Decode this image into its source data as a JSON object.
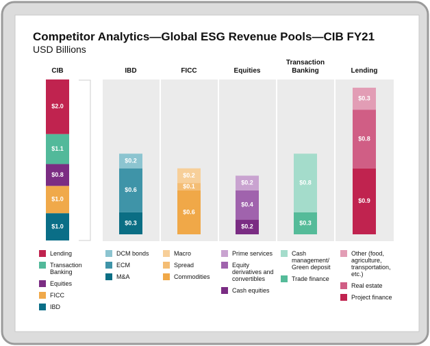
{
  "chart_data": {
    "type": "bar",
    "stacked": true,
    "title": "Competitor Analytics—Global ESG Revenue Pools—CIB FY21",
    "subtitle": "USD Billions",
    "panels": [
      {
        "title": "CIB",
        "series": [
          {
            "name": "Lending",
            "color": "#c0234f",
            "values": [
              2.0
            ],
            "value_labels": [
              "$2.0"
            ]
          },
          {
            "name": "Transaction Banking",
            "color": "#52b99a",
            "values": [
              1.1
            ],
            "value_labels": [
              "$1.1"
            ]
          },
          {
            "name": "Equities",
            "color": "#7b2d83",
            "values": [
              0.8
            ],
            "value_labels": [
              "$0.8"
            ]
          },
          {
            "name": "FICC",
            "color": "#f0a94a",
            "values": [
              1.0
            ],
            "value_labels": [
              "$1.0"
            ]
          },
          {
            "name": "IBD",
            "color": "#0a6e87",
            "values": [
              1.0
            ],
            "value_labels": [
              "$1.0"
            ]
          }
        ]
      },
      {
        "title": "IBD",
        "series": [
          {
            "name": "DCM bonds",
            "color": "#8cc4d0",
            "values": [
              0.2
            ],
            "value_labels": [
              "$0.2"
            ]
          },
          {
            "name": "ECM",
            "color": "#3f94a8",
            "values": [
              0.6
            ],
            "value_labels": [
              "$0.6"
            ]
          },
          {
            "name": "M&A",
            "color": "#0b6e84",
            "values": [
              0.3
            ],
            "value_labels": [
              "$0.3"
            ]
          }
        ]
      },
      {
        "title": "FICC",
        "series": [
          {
            "name": "Macro",
            "color": "#f7cf99",
            "values": [
              0.2
            ],
            "value_labels": [
              "$0.2"
            ]
          },
          {
            "name": "Spread",
            "color": "#f4bd74",
            "values": [
              0.1
            ],
            "value_labels": [
              "$0.1"
            ]
          },
          {
            "name": "Commodities",
            "color": "#f0a848",
            "values": [
              0.6
            ],
            "value_labels": [
              "$0.6"
            ]
          }
        ]
      },
      {
        "title": "Equities",
        "series": [
          {
            "name": "Prime services",
            "color": "#c9a3d0",
            "values": [
              0.2
            ],
            "value_labels": [
              "$0.2"
            ]
          },
          {
            "name": "Equity derivatives and convertibles",
            "color": "#a063ad",
            "values": [
              0.4
            ],
            "value_labels": [
              "$0.4"
            ]
          },
          {
            "name": "Cash equities",
            "color": "#7a2c83",
            "values": [
              0.2
            ],
            "value_labels": [
              "$0.2"
            ]
          }
        ]
      },
      {
        "title": "Transaction Banking",
        "series": [
          {
            "name": "Cash management/ Green deposit",
            "color": "#a4dccb",
            "values": [
              0.8
            ],
            "value_labels": [
              "$0.8"
            ]
          },
          {
            "name": "Trade finance",
            "color": "#55bb99",
            "values": [
              0.3
            ],
            "value_labels": [
              "$0.3"
            ]
          }
        ]
      },
      {
        "title": "Lending",
        "series": [
          {
            "name": "Other (food, agriculture, transportation, etc.)",
            "color": "#e29db5",
            "values": [
              0.3
            ],
            "value_labels": [
              "$0.3"
            ]
          },
          {
            "name": "Real estate",
            "color": "#d05e85",
            "values": [
              0.8
            ],
            "value_labels": [
              "$0.8"
            ]
          },
          {
            "name": "Project finance",
            "color": "#c0234f",
            "values": [
              0.9
            ],
            "value_labels": [
              "$0.9"
            ]
          }
        ]
      }
    ]
  }
}
